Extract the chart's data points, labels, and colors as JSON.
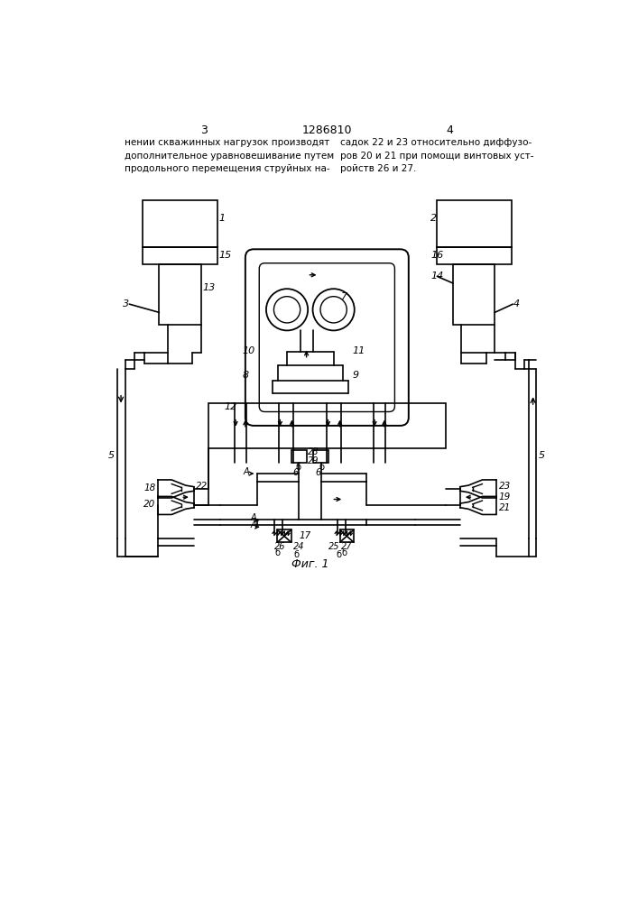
{
  "patent_number": "1286810",
  "page_left": "3",
  "page_right": "4",
  "text_left": "нении скважинных нагрузок производят\nдополнительное уравновешивание путем\nпродольного перемещения струйных на-",
  "text_right": "садок 22 и 23 относительно диффузо-\nров 20 и 21 при помощи винтовых уст-\nройств 26 и 27.",
  "fig_label": "Фиг. 1"
}
